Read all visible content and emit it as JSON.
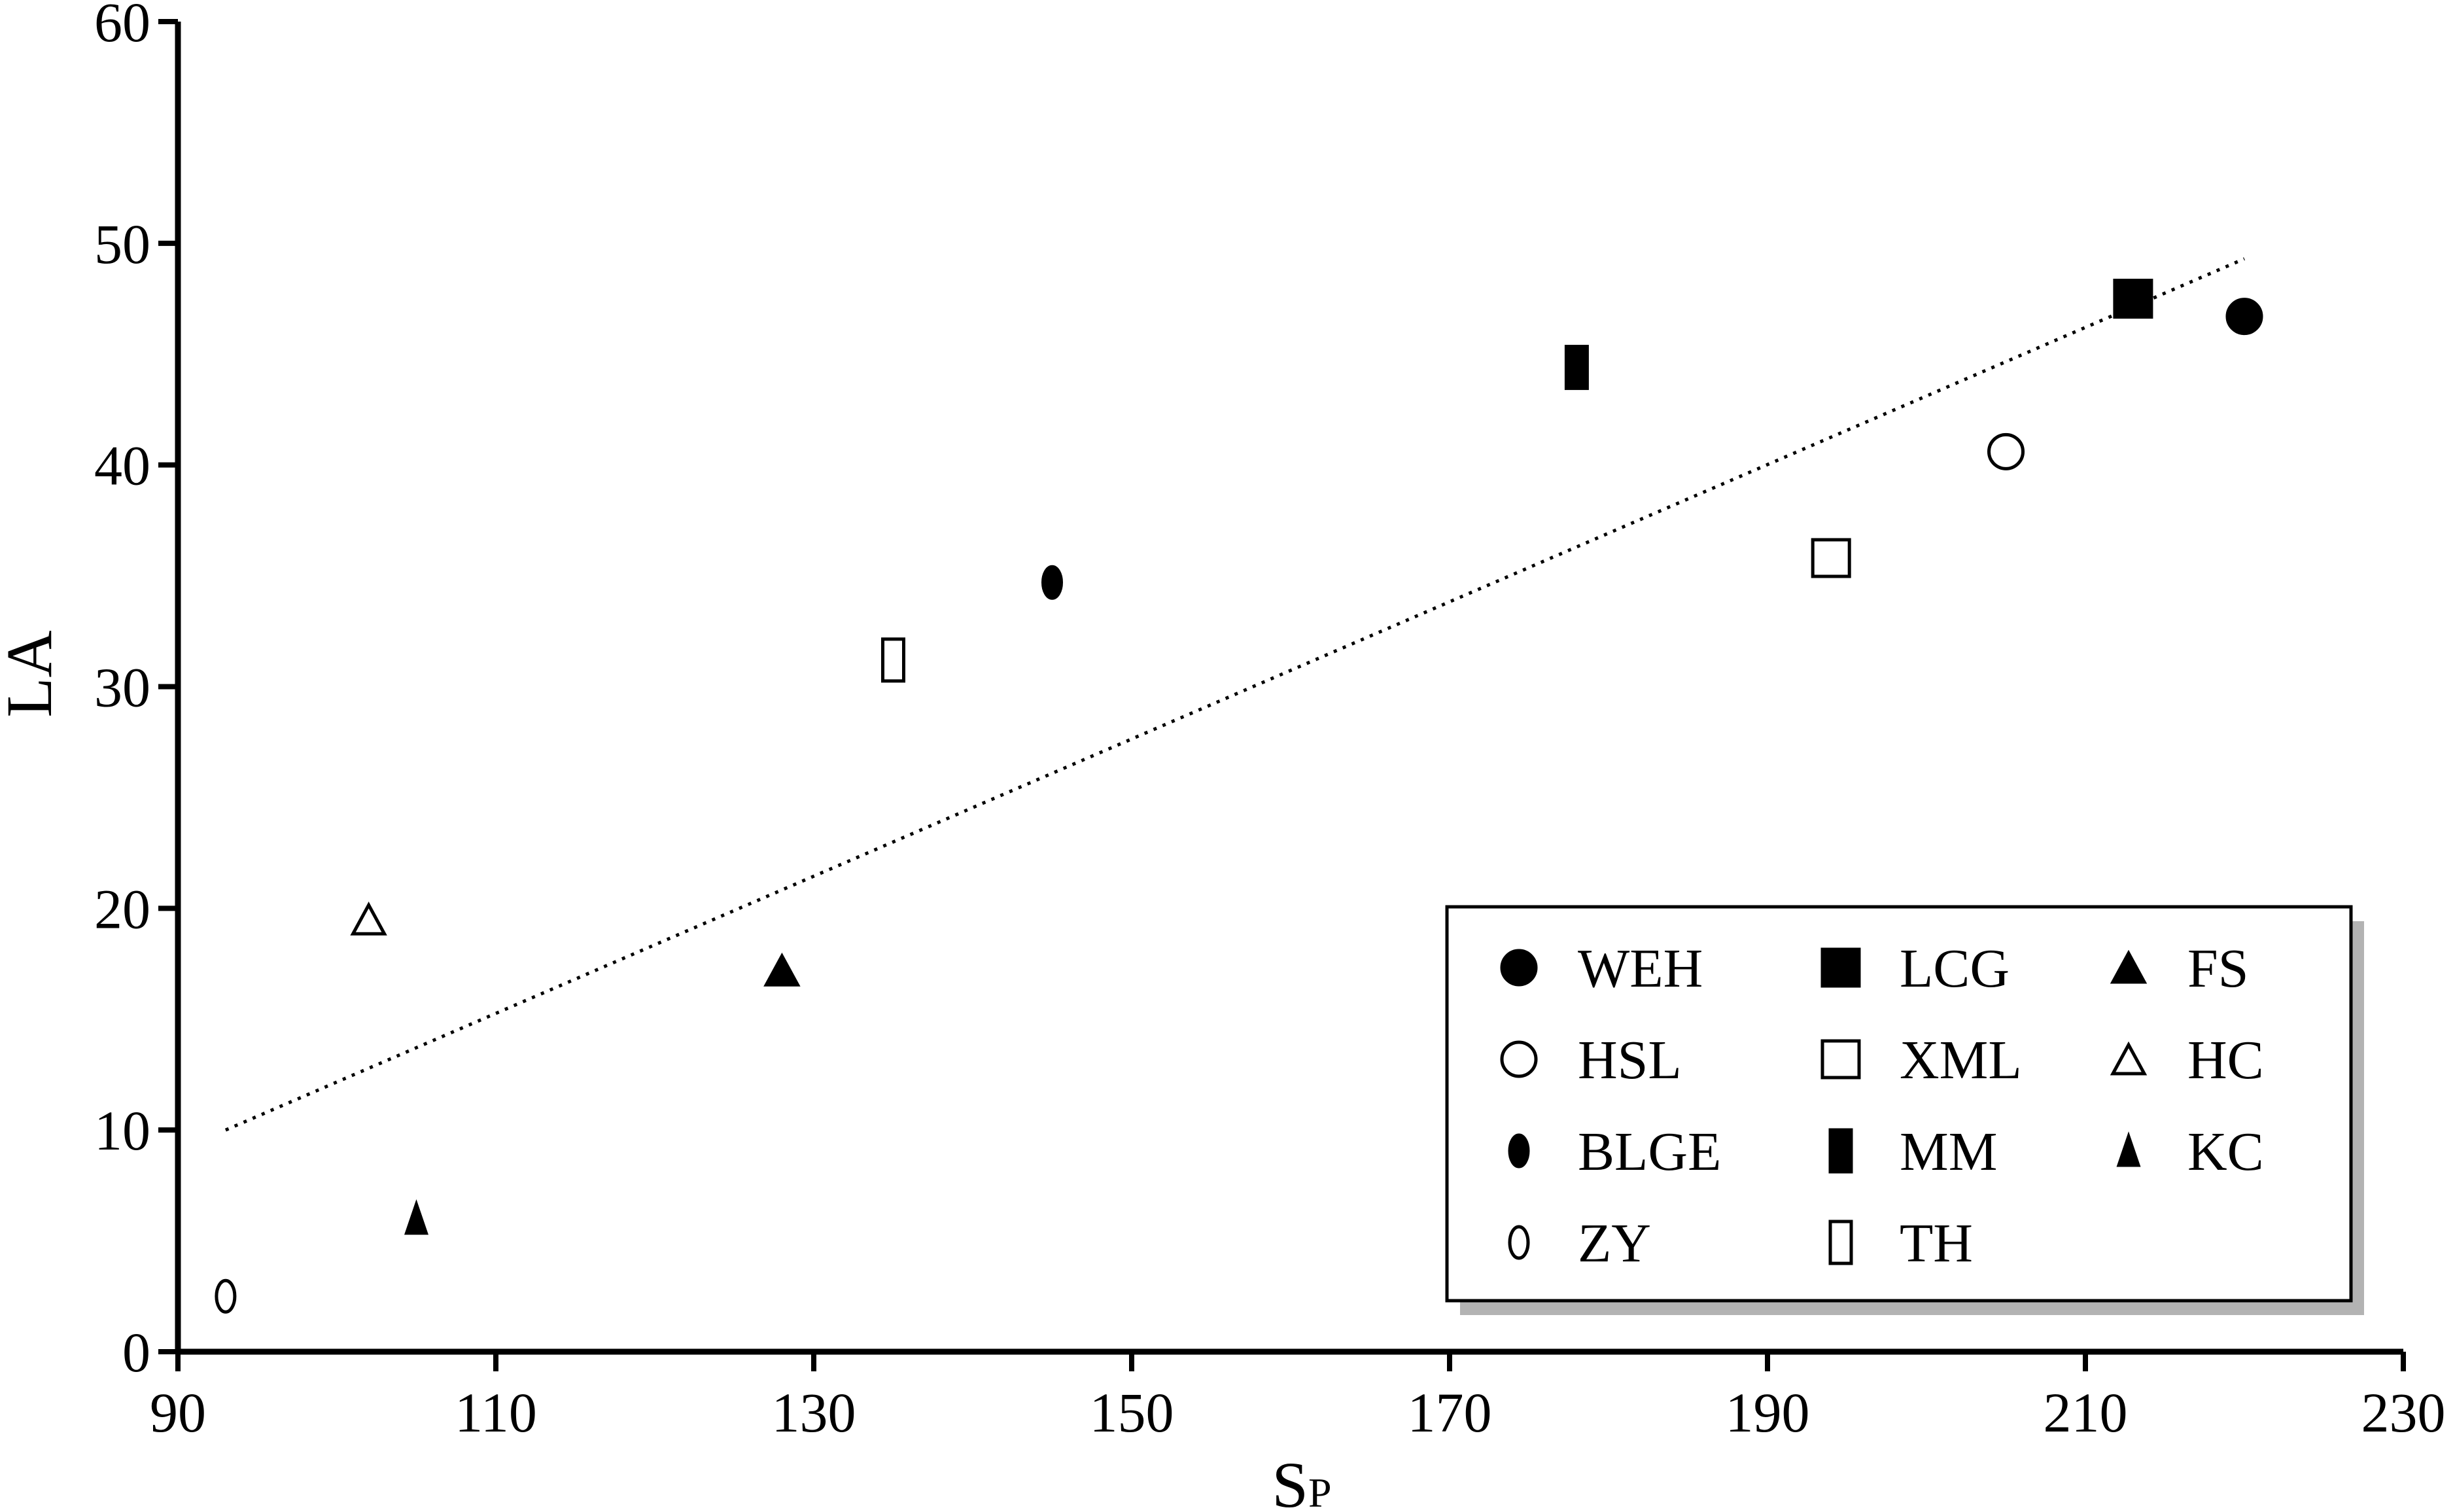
{
  "chart_data": {
    "type": "scatter",
    "title": "",
    "xlabel": "S",
    "xlabel_sub": "P",
    "ylabel": "LA",
    "xlim": [
      90,
      230
    ],
    "ylim": [
      0,
      60
    ],
    "xticks": [
      90,
      110,
      130,
      150,
      170,
      190,
      210,
      230
    ],
    "yticks": [
      0,
      10,
      20,
      30,
      40,
      50,
      60
    ],
    "grid": false,
    "legend_position": "bottom-right",
    "series": [
      {
        "name": "WEH",
        "marker": "circle-filled",
        "x": 220,
        "y": 46.7
      },
      {
        "name": "LCG",
        "marker": "square-filled",
        "x": 213,
        "y": 47.5
      },
      {
        "name": "FS",
        "marker": "triangle-filled",
        "x": 128,
        "y": 17.2
      },
      {
        "name": "HSL",
        "marker": "circle-open",
        "x": 205,
        "y": 40.6
      },
      {
        "name": "XML",
        "marker": "square-open",
        "x": 194,
        "y": 35.8
      },
      {
        "name": "HC",
        "marker": "triangle-open",
        "x": 102,
        "y": 19.5
      },
      {
        "name": "BLGE",
        "marker": "ellipse-filled",
        "x": 145,
        "y": 34.7
      },
      {
        "name": "MM",
        "marker": "rect-filled",
        "x": 178,
        "y": 44.4
      },
      {
        "name": "KC",
        "marker": "small-triangle",
        "x": 105,
        "y": 6.0
      },
      {
        "name": "ZY",
        "marker": "ellipse-open",
        "x": 93,
        "y": 2.5
      },
      {
        "name": "TH",
        "marker": "rect-open",
        "x": 135,
        "y": 31.2
      }
    ],
    "trendline": {
      "style": "dotted",
      "x": [
        93,
        220
      ],
      "y": [
        10.0,
        49.3
      ]
    },
    "colors": {
      "marker": "#000000",
      "axis": "#000000",
      "legend_shadow": "#b3b3b3"
    }
  }
}
